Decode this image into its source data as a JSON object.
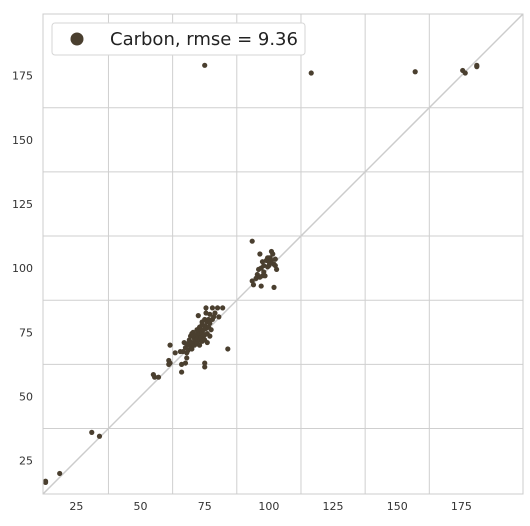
{
  "chart_data": {
    "type": "scatter",
    "title": "",
    "xlabel": "",
    "ylabel": "",
    "xlim": [
      12,
      199
    ],
    "ylim": [
      12,
      199
    ],
    "x_ticks": [
      25,
      50,
      75,
      100,
      125,
      150,
      175
    ],
    "y_ticks": [
      25,
      50,
      75,
      100,
      125,
      150,
      175
    ],
    "grid": true,
    "reference_line": "y = x",
    "legend": {
      "placement": "top-left",
      "label": "Carbon, rmse = 9.36"
    },
    "colors": {
      "points": "#4a3f2f",
      "reference_line": "#cccccc",
      "grid": "#cfcfcf",
      "frame": "#cccccc"
    },
    "series": [
      {
        "name": "Carbon, rmse = 9.36",
        "points": [
          [
            13,
            17
          ],
          [
            13,
            16.5
          ],
          [
            18.5,
            20
          ],
          [
            31,
            36
          ],
          [
            34,
            34.5
          ],
          [
            55,
            58.5
          ],
          [
            55.5,
            57.5
          ],
          [
            57,
            57.5
          ],
          [
            61,
            62.5
          ],
          [
            61,
            64
          ],
          [
            61.5,
            63
          ],
          [
            61.5,
            70
          ],
          [
            63.5,
            67
          ],
          [
            65.5,
            67.5
          ],
          [
            66,
            62.5
          ],
          [
            66,
            59.5
          ],
          [
            66.5,
            67.5
          ],
          [
            67,
            71
          ],
          [
            67.5,
            69
          ],
          [
            67.5,
            63
          ],
          [
            68,
            67
          ],
          [
            68,
            65
          ],
          [
            68,
            70.5
          ],
          [
            68.5,
            68
          ],
          [
            69,
            70
          ],
          [
            69,
            72
          ],
          [
            69.5,
            73.5
          ],
          [
            69.5,
            69.5
          ],
          [
            70,
            71
          ],
          [
            70,
            68.5
          ],
          [
            70,
            74.5
          ],
          [
            70.5,
            70.5
          ],
          [
            70.5,
            75
          ],
          [
            71,
            72.5
          ],
          [
            71,
            70
          ],
          [
            71,
            73.5
          ],
          [
            71.5,
            71
          ],
          [
            71.5,
            74
          ],
          [
            72,
            72.5
          ],
          [
            72,
            76
          ],
          [
            72,
            70.5
          ],
          [
            72.5,
            73.5
          ],
          [
            72.5,
            75
          ],
          [
            72.5,
            81.5
          ],
          [
            73,
            72
          ],
          [
            73,
            74.5
          ],
          [
            73,
            77
          ],
          [
            73,
            70
          ],
          [
            73.5,
            76
          ],
          [
            73.5,
            73
          ],
          [
            74,
            78
          ],
          [
            74,
            75
          ],
          [
            74,
            71.5
          ],
          [
            74,
            79
          ],
          [
            74.5,
            76
          ],
          [
            74.5,
            73.5
          ],
          [
            75,
            77.5
          ],
          [
            75,
            80
          ],
          [
            75,
            74
          ],
          [
            75,
            72
          ],
          [
            75,
            63
          ],
          [
            75,
            61.5
          ],
          [
            75.5,
            76.5
          ],
          [
            75.5,
            82.5
          ],
          [
            75.5,
            84.5
          ],
          [
            76,
            79
          ],
          [
            76,
            74.5
          ],
          [
            76,
            71
          ],
          [
            76.5,
            77
          ],
          [
            76.5,
            80
          ],
          [
            77,
            78.5
          ],
          [
            77,
            73.5
          ],
          [
            77,
            82
          ],
          [
            77.5,
            76
          ],
          [
            78,
            80
          ],
          [
            78,
            84.5
          ],
          [
            78.5,
            81
          ],
          [
            79,
            82.5
          ],
          [
            80,
            84.5
          ],
          [
            80.5,
            81
          ],
          [
            82,
            84.5
          ],
          [
            84,
            68.5
          ],
          [
            93.5,
            110.5
          ],
          [
            93.5,
            95
          ],
          [
            94,
            93.5
          ],
          [
            95,
            96
          ],
          [
            95.5,
            97.5
          ],
          [
            96,
            99.5
          ],
          [
            96.5,
            105.5
          ],
          [
            96.5,
            96.5
          ],
          [
            97,
            100
          ],
          [
            97,
            93
          ],
          [
            97.5,
            97
          ],
          [
            97.5,
            102.5
          ],
          [
            98,
            98.5
          ],
          [
            98,
            101
          ],
          [
            98.5,
            97
          ],
          [
            99,
            103
          ],
          [
            99.5,
            104
          ],
          [
            99.5,
            100.5
          ],
          [
            100,
            102.5
          ],
          [
            100,
            104
          ],
          [
            100,
            101
          ],
          [
            100.5,
            104
          ],
          [
            101,
            106.5
          ],
          [
            101,
            103
          ],
          [
            101,
            102
          ],
          [
            101.5,
            105.5
          ],
          [
            102,
            101.5
          ],
          [
            102,
            92.5
          ],
          [
            102.5,
            103.5
          ],
          [
            102.5,
            101
          ],
          [
            103,
            99.5
          ],
          [
            75,
            179
          ],
          [
            116.5,
            176
          ],
          [
            157,
            176.5
          ],
          [
            175.5,
            177
          ],
          [
            176.5,
            176
          ],
          [
            181,
            178.5
          ],
          [
            181,
            179
          ]
        ]
      }
    ]
  }
}
